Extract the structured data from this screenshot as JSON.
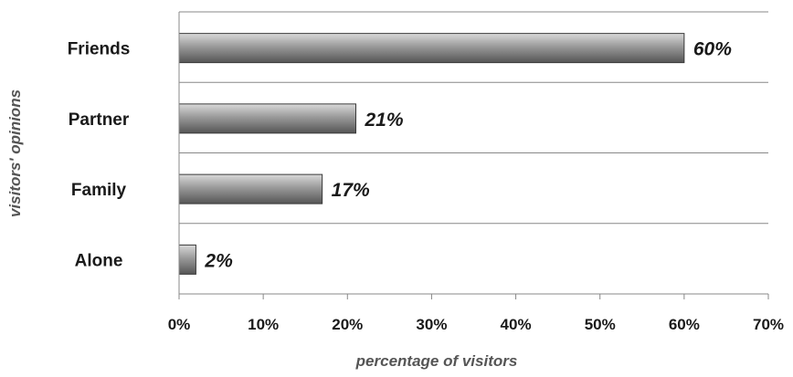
{
  "chart_data": {
    "type": "bar",
    "orientation": "horizontal",
    "categories": [
      "Friends",
      "Partner",
      "Family",
      "Alone"
    ],
    "values": [
      60,
      21,
      17,
      2
    ],
    "data_labels": [
      "60%",
      "21%",
      "17%",
      "2%"
    ],
    "xlabel": "percentage of visitors",
    "ylabel": "visitors' opinions",
    "xlim": [
      0,
      70
    ],
    "x_ticks": [
      0,
      10,
      20,
      30,
      40,
      50,
      60,
      70
    ],
    "x_tick_labels": [
      "0%",
      "10%",
      "20%",
      "30%",
      "40%",
      "50%",
      "60%",
      "70%"
    ],
    "grid": "horizontal separators between categories",
    "legend": "none",
    "colors": {
      "bar_light": "#d9d9d9",
      "bar_mid": "#9a9a9a",
      "bar_dark": "#555555",
      "bar_outline": "#3a3a3a",
      "grid": "#888888",
      "text": "#1a1a1a",
      "axis_title": "#555555"
    }
  }
}
